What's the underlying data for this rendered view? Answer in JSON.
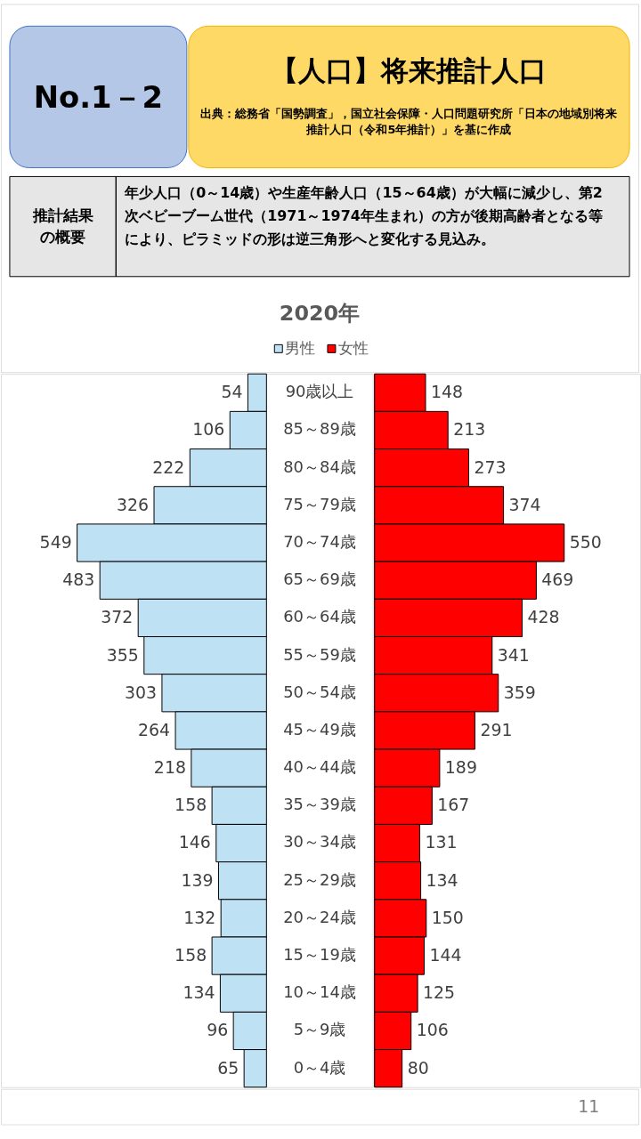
{
  "chart_data": [
    {
      "type": "bar",
      "orientation": "horizontal",
      "subtitle": "2020年",
      "annotations": [
        "No.1－2",
        "【人口】将来推計人口",
        "出典：総務省「国勢調査」，国立社会保障・人口問題研究所「日本の地域別将来推計人口（令和5年推計）」を基に作成",
        "推計結果の概要",
        "年少人口（0～14歳）や生産年齢人口（15～64歳）が大幅に減少し、第2次ベビーブーム世代（1971～1974年生まれ）の方が後期高齢者となる等により、ピラミッドの形は逆三角形へと変化する見込み。",
        "11"
      ],
      "categories": [
        "90歳以上",
        "85～89歳",
        "80～84歳",
        "75～79歳",
        "70～74歳",
        "65～69歳",
        "60～64歳",
        "55～59歳",
        "50～54歳",
        "45～49歳",
        "40～44歳",
        "35～39歳",
        "30～34歳",
        "25～29歳",
        "20～24歳",
        "15～19歳",
        "10～14歳",
        "5～9歳",
        "0～4歳"
      ],
      "series": [
        {
          "name": "男性",
          "color": "#bfe1f4",
          "values": [
            54,
            106,
            222,
            326,
            549,
            483,
            372,
            355,
            303,
            264,
            218,
            158,
            146,
            139,
            132,
            158,
            134,
            96,
            65
          ]
        }
      ],
      "data_labels": true,
      "legend": "top",
      "grid": false
    },
    {
      "type": "bar",
      "orientation": "horizontal",
      "series": [
        {
          "name": "女性",
          "color": "#ff0000",
          "values": [
            148,
            213,
            273,
            374,
            550,
            469,
            428,
            341,
            359,
            291,
            189,
            167,
            131,
            134,
            150,
            144,
            125,
            106,
            80
          ]
        }
      ],
      "data_labels": true,
      "grid": false
    }
  ]
}
